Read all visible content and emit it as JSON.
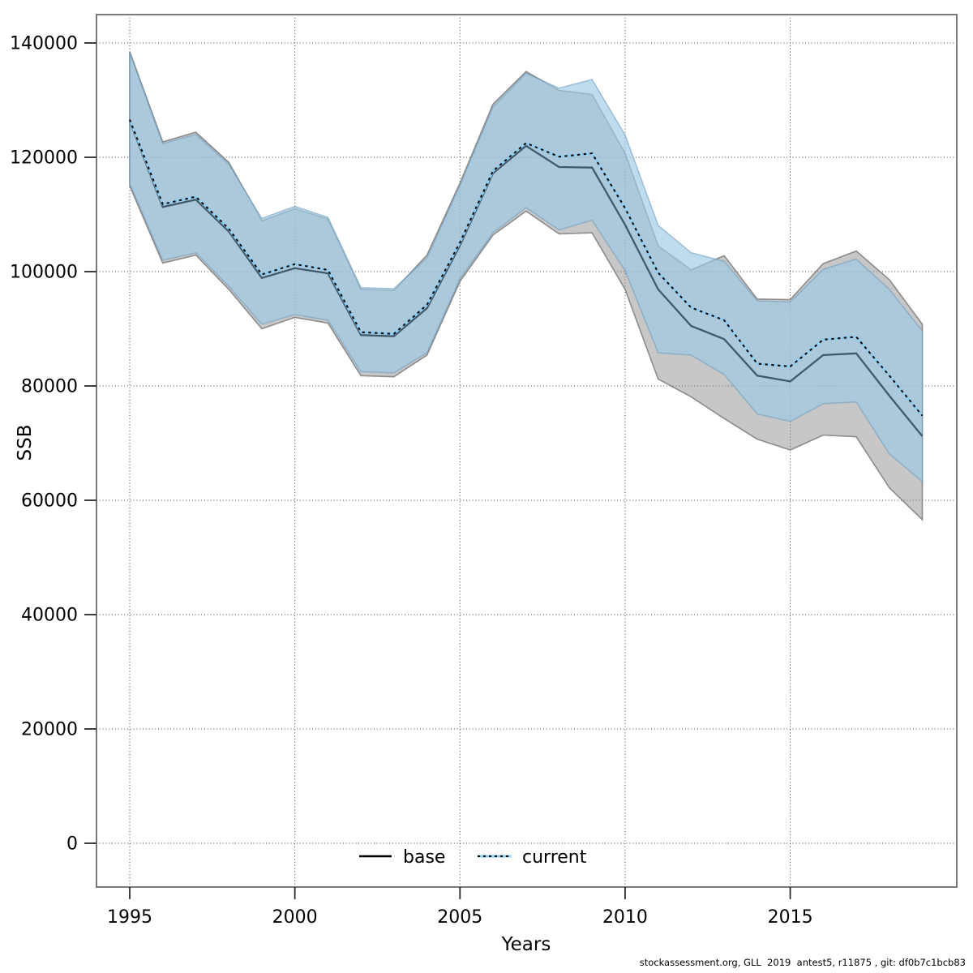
{
  "figure": {
    "y_axis": {
      "label": "SSB",
      "ticks": [
        0,
        20000,
        40000,
        60000,
        80000,
        100000,
        120000,
        140000
      ]
    },
    "x_axis": {
      "label": "Years",
      "ticks": [
        1995,
        2000,
        2005,
        2010,
        2015
      ]
    },
    "legend": [
      {
        "id": "base",
        "label": "base"
      },
      {
        "id": "current",
        "label": "current"
      }
    ],
    "footer": "stockassessment.org, GLL  2019  antest5, r11875 , git: df0b7c1bcb83",
    "colors": {
      "base_line": "#000000",
      "base_band": "#c6c6c6",
      "current_line_dash": "#0b0b0b",
      "current_line_under": "#8ecdf0",
      "current_band": "#bfdcee",
      "band_overlap": "#a9c6d9",
      "grid": "#404040",
      "box": "#7b7b7b"
    }
  },
  "chart_data": {
    "type": "line",
    "title": "",
    "xlabel": "Years",
    "ylabel": "SSB",
    "x": [
      1995,
      1996,
      1997,
      1998,
      1999,
      2000,
      2001,
      2002,
      2003,
      2004,
      2005,
      2006,
      2007,
      2008,
      2009,
      2010,
      2011,
      2012,
      2013,
      2014,
      2015,
      2016,
      2017,
      2018,
      2019
    ],
    "series": [
      {
        "name": "base",
        "style": "solid-black",
        "band": "gray",
        "values": [
          126300,
          111300,
          112600,
          107000,
          98900,
          100600,
          99700,
          88900,
          88700,
          93600,
          104600,
          117200,
          122000,
          118300,
          118200,
          108200,
          96900,
          90500,
          88200,
          81800,
          80800,
          85400,
          85700,
          78300,
          71200
        ],
        "ci_low": [
          115000,
          101500,
          102900,
          96900,
          90000,
          92000,
          91000,
          81800,
          81600,
          85400,
          98300,
          106400,
          110600,
          106600,
          106800,
          96900,
          81200,
          78100,
          74300,
          70700,
          68800,
          71400,
          71100,
          62200,
          56600
        ],
        "ci_high": [
          138500,
          122700,
          124400,
          119100,
          108900,
          111000,
          109200,
          96900,
          96700,
          102900,
          115500,
          129300,
          135000,
          131700,
          131000,
          120700,
          104500,
          100300,
          102800,
          95200,
          95100,
          101400,
          103600,
          98600,
          90800
        ]
      },
      {
        "name": "current",
        "style": "dotted-blue",
        "band": "lightblue",
        "values": [
          126600,
          111800,
          113100,
          107500,
          99500,
          101300,
          100300,
          89400,
          89100,
          94200,
          105100,
          117600,
          122500,
          120100,
          120700,
          111100,
          99800,
          93700,
          91500,
          83900,
          83400,
          88100,
          88600,
          81800,
          74800
        ],
        "ci_low": [
          115400,
          102000,
          103300,
          97400,
          90800,
          92500,
          91500,
          82500,
          82300,
          85800,
          98800,
          106800,
          111200,
          107300,
          109000,
          100200,
          85800,
          85400,
          82000,
          75100,
          73800,
          76900,
          77200,
          68100,
          63300
        ],
        "ci_high": [
          138300,
          122400,
          124000,
          118800,
          109300,
          111400,
          109500,
          97200,
          97000,
          102400,
          115100,
          128800,
          134700,
          132100,
          133600,
          123900,
          108100,
          103300,
          101800,
          94900,
          94700,
          100400,
          102200,
          96900,
          89600
        ]
      }
    ],
    "ylim": [
      -7700,
      145000
    ],
    "xlim": [
      1994,
      2020
    ],
    "grid": true,
    "legend_position": "bottom-center-inside"
  }
}
